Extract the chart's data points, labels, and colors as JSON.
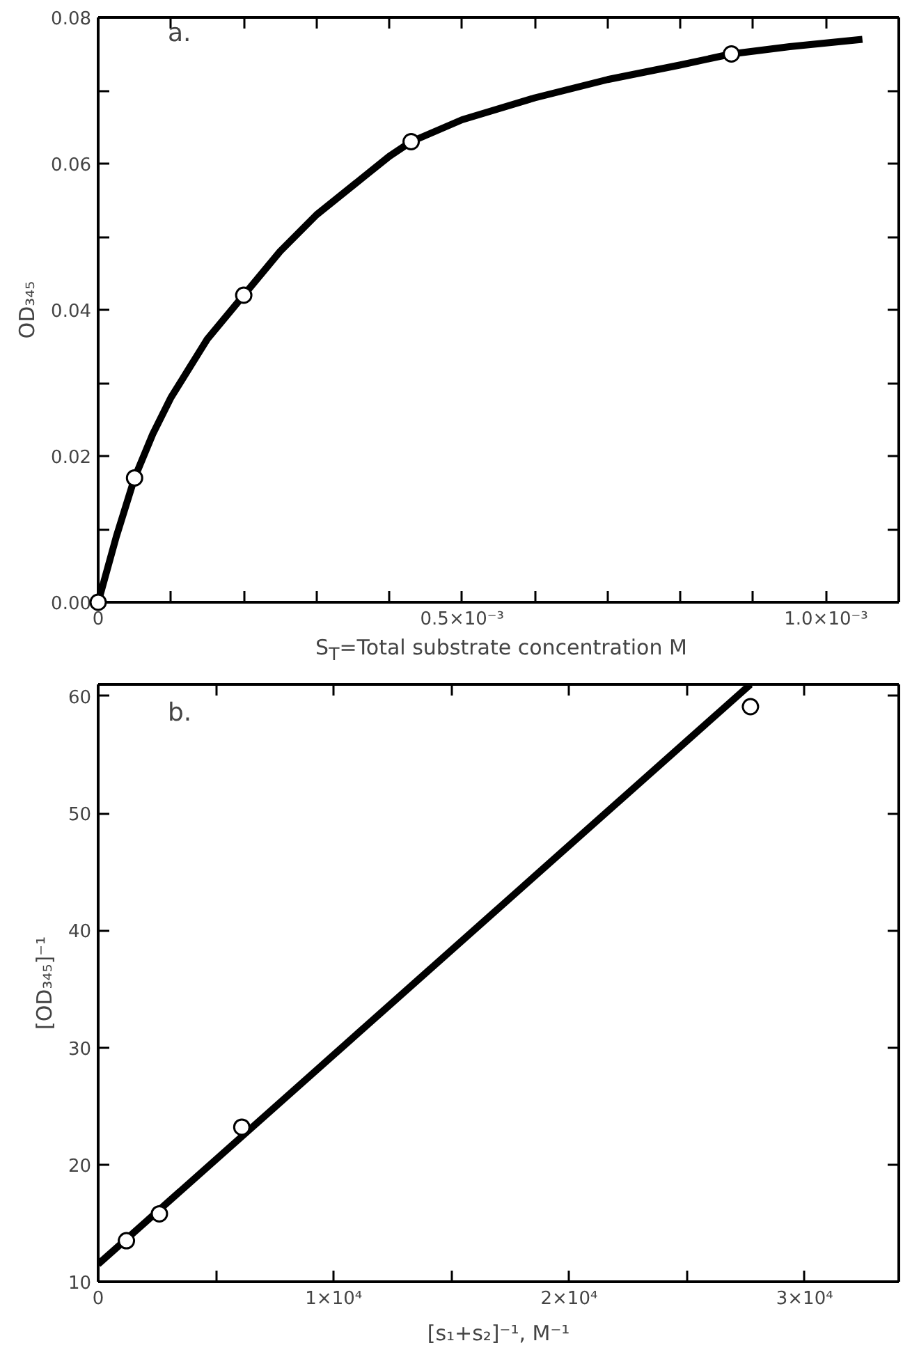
{
  "chart_data": [
    {
      "type": "scatter",
      "xlabel": "S$_{T}$=Total substrate concentration M",
      "ylabel": "OD₃₄₅",
      "annotations": [
        "a."
      ],
      "marker": "circle",
      "grid": false,
      "xlim": [
        0,
        0.0011
      ],
      "ylim": [
        0,
        0.08
      ],
      "xticks": [
        {
          "value": 0,
          "label": "0"
        },
        {
          "value": 0.0001,
          "label": null
        },
        {
          "value": 0.0002,
          "label": null
        },
        {
          "value": 0.0003,
          "label": null
        },
        {
          "value": 0.0004,
          "label": null
        },
        {
          "value": 0.0005,
          "label": "0.5×10⁻³"
        },
        {
          "value": 0.0006,
          "label": null
        },
        {
          "value": 0.0007,
          "label": null
        },
        {
          "value": 0.0008,
          "label": null
        },
        {
          "value": 0.0009,
          "label": null
        },
        {
          "value": 0.001,
          "label": "1.0×10⁻³"
        }
      ],
      "yticks": [
        {
          "value": 0,
          "label": "0.00"
        },
        {
          "value": 0.01,
          "label": null
        },
        0.02,
        {
          "value": 0.03,
          "label": null
        },
        0.04,
        {
          "value": 0.05,
          "label": null
        },
        0.06,
        {
          "value": 0.07,
          "label": null
        },
        0.08
      ],
      "series": [
        {
          "color": "#000000",
          "x": [
            0,
            5e-05,
            0.0002,
            0.00043,
            0.00087
          ],
          "values": [
            0,
            0.017,
            0.042,
            0.063,
            0.075
          ]
        },
        {
          "type": "line",
          "color": "#000000",
          "marker": "none",
          "x": [
            0,
            2.5e-05,
            5e-05,
            7.5e-05,
            0.0001,
            0.000125,
            0.00015,
            0.000175,
            0.0002,
            0.00025,
            0.0003,
            0.00035,
            0.0004,
            0.00043,
            0.0005,
            0.0006,
            0.0007,
            0.0008,
            0.00087,
            0.00095,
            0.00105
          ],
          "values": [
            0,
            0.009,
            0.017,
            0.023,
            0.028,
            0.032,
            0.036,
            0.039,
            0.042,
            0.048,
            0.053,
            0.057,
            0.061,
            0.063,
            0.066,
            0.069,
            0.0715,
            0.0735,
            0.075,
            0.076,
            0.077
          ]
        }
      ]
    },
    {
      "type": "scatter",
      "xlabel": "[s₁+s₂]⁻¹, M⁻¹",
      "ylabel": "[OD₃₄₅]⁻¹",
      "annotations": [
        "b."
      ],
      "marker": "circle",
      "grid": false,
      "xlim": [
        0,
        34000
      ],
      "ylim": [
        10,
        61
      ],
      "xticks": [
        {
          "value": 0,
          "label": "0"
        },
        {
          "value": 5000,
          "label": null
        },
        {
          "value": 10000,
          "label": "1×10⁴"
        },
        {
          "value": 15000,
          "label": null
        },
        {
          "value": 20000,
          "label": "2×10⁴"
        },
        {
          "value": 25000,
          "label": null
        },
        {
          "value": 30000,
          "label": "3×10⁴"
        }
      ],
      "yticks": [
        10,
        20,
        30,
        40,
        50,
        60
      ],
      "series": [
        {
          "color": "#000000",
          "x": [
            1200,
            2600,
            6100,
            27700
          ],
          "values": [
            13.5,
            15.8,
            23.2,
            59.1
          ]
        },
        {
          "type": "line",
          "color": "#000000",
          "marker": "none",
          "x": [
            0,
            27700
          ],
          "values": [
            11.5,
            61
          ]
        }
      ]
    }
  ]
}
